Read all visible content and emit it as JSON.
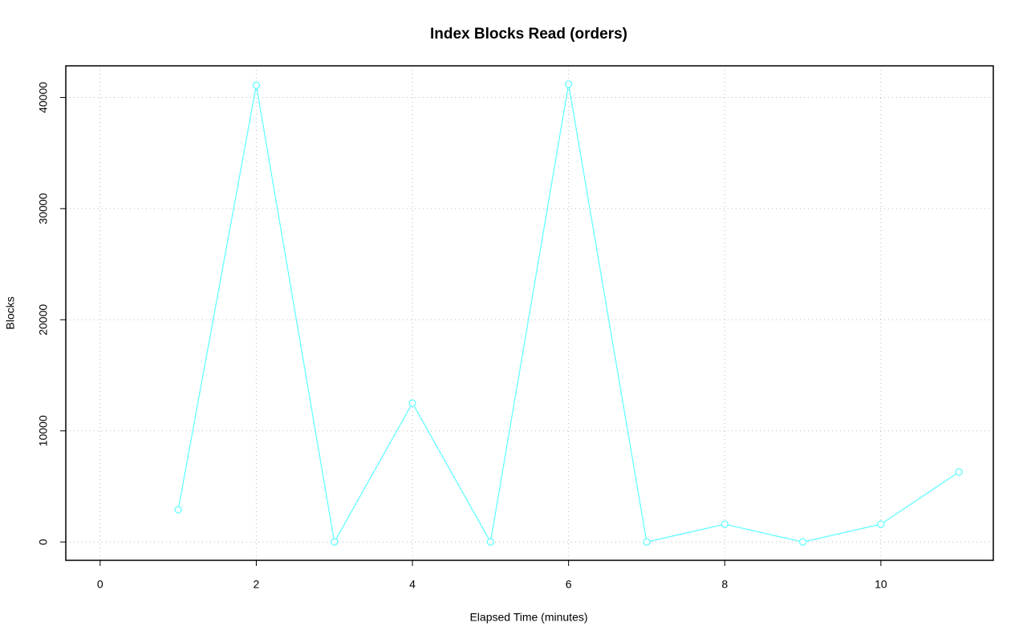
{
  "chart_data": {
    "type": "line",
    "title": "Index Blocks Read (orders)",
    "x_label": "Elapsed Time (minutes)",
    "y_label": "Blocks",
    "x": [
      1,
      2,
      3,
      4,
      5,
      6,
      7,
      8,
      9,
      10,
      11
    ],
    "series": [
      {
        "color": "#66ffff",
        "values": [
          2900,
          41100,
          0,
          12500,
          0,
          41200,
          0,
          1600,
          0,
          1600,
          6300
        ]
      }
    ],
    "xlim": [
      -0.44,
      11.44
    ],
    "xticks": [
      0,
      2,
      4,
      6,
      8,
      10
    ],
    "ylim": [
      -1650,
      42850
    ],
    "yticks": [
      0,
      10000,
      20000,
      30000,
      40000
    ],
    "grid": true
  }
}
